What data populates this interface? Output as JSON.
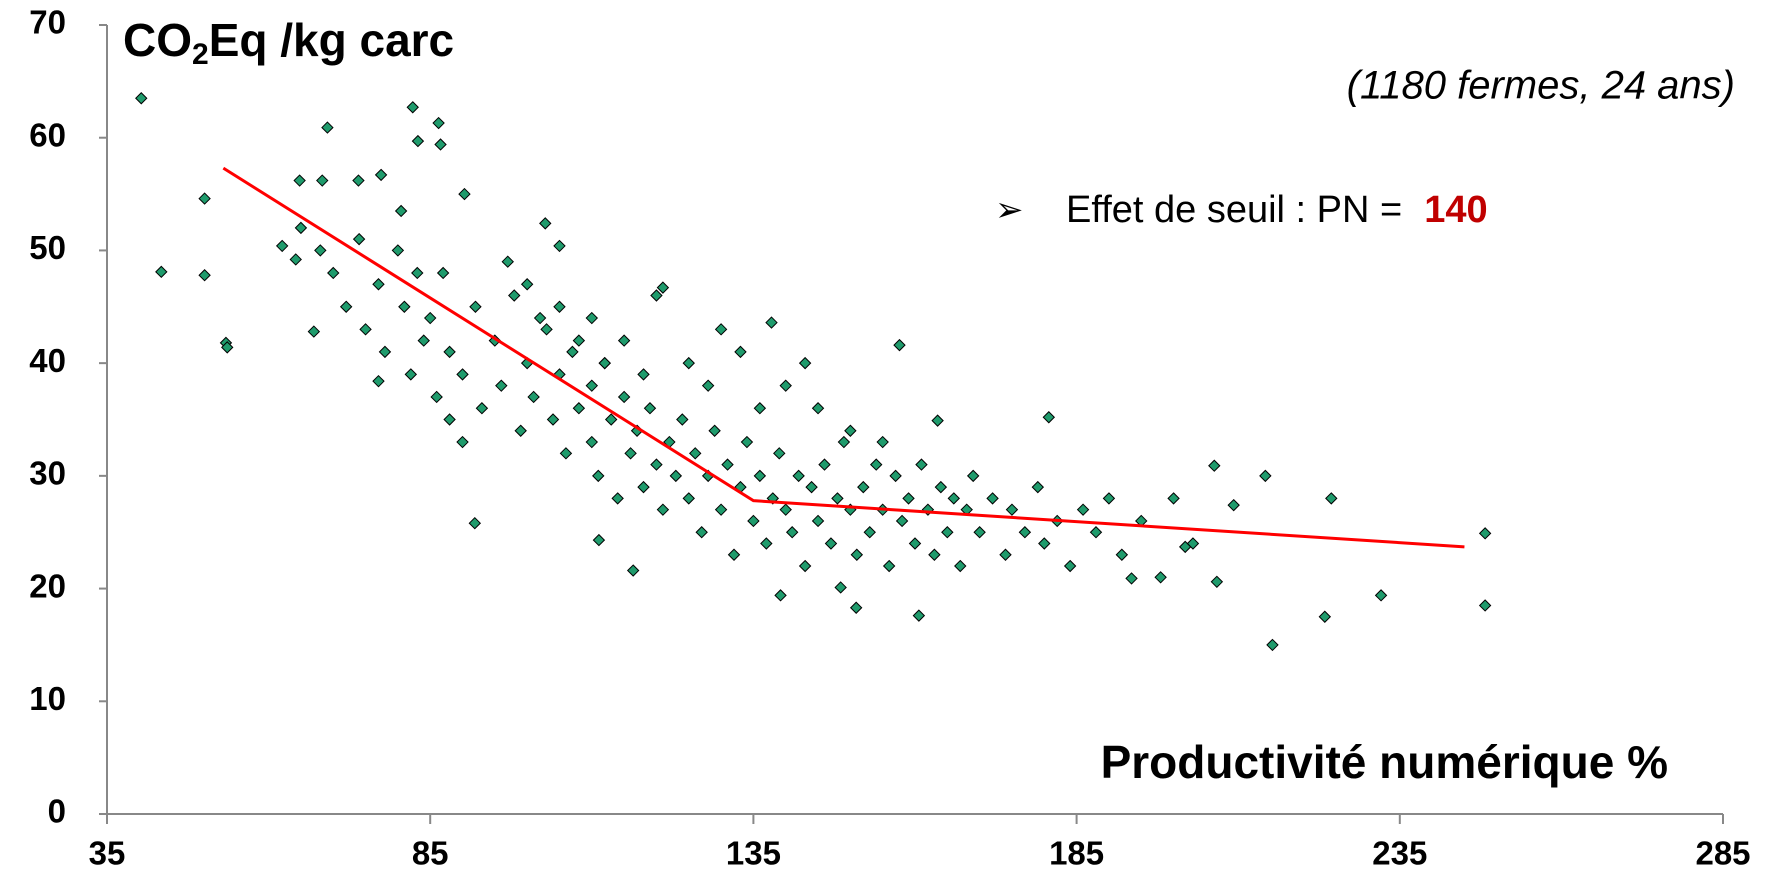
{
  "chart_data": {
    "type": "scatter",
    "y_label": {
      "main": "CO",
      "subscript": "2",
      "rest": "Eq /kg carc"
    },
    "x_label": "Productivité numérique %",
    "annotation": "(1180 fermes, 24 ans)",
    "threshold_note": {
      "bullet": "➢",
      "text": "Effet de seuil : PN =",
      "value": "140"
    },
    "xlim": [
      35,
      285
    ],
    "xticks": [
      35,
      85,
      135,
      185,
      235,
      285
    ],
    "ylim": [
      0,
      70
    ],
    "yticks": [
      0,
      10,
      20,
      30,
      40,
      50,
      60,
      70
    ],
    "grid": false,
    "points": {
      "color": "#1f9b6c",
      "x": [
        40.3,
        43.4,
        50.1,
        50.1,
        53.4,
        53.6,
        62.1,
        64.2,
        64.8,
        68.3,
        69.1,
        67.0,
        73.9,
        77.4,
        77.0,
        80.5,
        82.3,
        86.3,
        86.6,
        83.1,
        90.3,
        91.9,
        102.8,
        105.0,
        111.1,
        116.4,
        121.0,
        137.8,
        139.2,
        148.5,
        150.9,
        157.6,
        160.6,
        163.5,
        180.7,
        206.3,
        214.2,
        215.3,
        223.4,
        224.4,
        232.1,
        248.2,
        248.2,
        206.7,
        209.3,
        193.5,
        201.8,
        85,
        87,
        88,
        90,
        92,
        93,
        95,
        96,
        98,
        99,
        100,
        101,
        103,
        104,
        105,
        106,
        107,
        108,
        110,
        110,
        111,
        112,
        113,
        114,
        115,
        116,
        117,
        118,
        119,
        120,
        121,
        122,
        123,
        124,
        125,
        126,
        127,
        128,
        129,
        130,
        131,
        132,
        133,
        134,
        135,
        136,
        137,
        138,
        139,
        140,
        141,
        142,
        143,
        144,
        145,
        146,
        147,
        148,
        149,
        150,
        151,
        152,
        153,
        154,
        155,
        156,
        157,
        158,
        159,
        160,
        161,
        162,
        163,
        164,
        165,
        166,
        167,
        168,
        169,
        170,
        172,
        174,
        175,
        177,
        179,
        180,
        182,
        184,
        186,
        188,
        190,
        192,
        195,
        198,
        200,
        203,
        65,
        68,
        70,
        72,
        74,
        75,
        77,
        78,
        80,
        81,
        82,
        83,
        84,
        86,
        88,
        90,
        97,
        100,
        102,
        105,
        108,
        110,
        112,
        115,
        118,
        120,
        125,
        128,
        130,
        133,
        136,
        140,
        143,
        145,
        150,
        155
      ],
      "y": [
        63.5,
        48.1,
        54.6,
        47.8,
        41.8,
        41.4,
        50.4,
        49.2,
        56.2,
        56.2,
        60.9,
        42.8,
        56.2,
        56.7,
        38.4,
        53.5,
        62.7,
        61.3,
        59.4,
        59.7,
        55.0,
        25.8,
        52.4,
        50.4,
        24.3,
        21.6,
        46.7,
        43.6,
        19.4,
        20.1,
        18.3,
        41.6,
        17.6,
        34.9,
        35.2,
        30.9,
        30.0,
        15.0,
        17.5,
        28.0,
        19.4,
        24.9,
        18.5,
        20.6,
        27.4,
        20.9,
        23.7,
        44,
        48,
        41,
        39,
        45,
        36,
        42,
        38,
        46,
        34,
        40,
        37,
        43,
        35,
        39,
        32,
        41,
        36,
        33,
        38,
        30,
        40,
        35,
        28,
        37,
        32,
        34,
        29,
        36,
        31,
        27,
        33,
        30,
        35,
        28,
        32,
        25,
        30,
        34,
        27,
        31,
        23,
        29,
        33,
        26,
        30,
        24,
        28,
        32,
        27,
        25,
        30,
        22,
        29,
        26,
        31,
        24,
        28,
        33,
        27,
        23,
        29,
        25,
        31,
        27,
        22,
        30,
        26,
        28,
        24,
        31,
        27,
        23,
        29,
        25,
        28,
        22,
        27,
        30,
        25,
        28,
        23,
        27,
        25,
        29,
        24,
        26,
        22,
        27,
        25,
        28,
        23,
        26,
        21,
        28,
        24,
        52,
        50,
        48,
        45,
        51,
        43,
        47,
        41,
        50,
        45,
        39,
        48,
        42,
        37,
        35,
        33,
        49,
        47,
        44,
        45,
        42,
        44,
        40,
        42,
        39,
        46,
        40,
        38,
        43,
        41,
        36,
        38,
        40,
        36,
        34,
        33
      ]
    },
    "fit_line": {
      "color": "#ff0000",
      "x": [
        53,
        135,
        245
      ],
      "y": [
        57.3,
        27.8,
        23.7
      ]
    }
  }
}
